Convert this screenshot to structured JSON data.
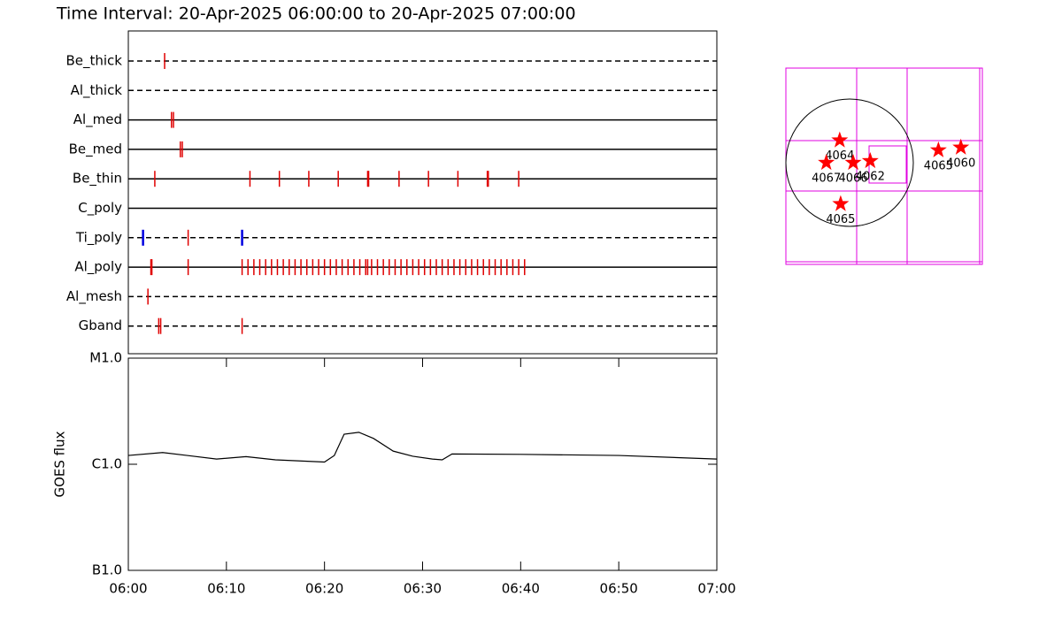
{
  "chart_data": [
    {
      "type": "timeline",
      "title": "Time Interval: 20-Apr-2025 06:00:00 to 20-Apr-2025 07:00:00",
      "xlim": [
        0,
        60
      ],
      "series": [
        {
          "name": "Be_thick",
          "line_style": "dashed",
          "color": "#e00000",
          "values": [
            3.7
          ]
        },
        {
          "name": "Al_thick",
          "line_style": "dashed",
          "color": "#e00000",
          "values": []
        },
        {
          "name": "Al_med",
          "line_style": "solid",
          "color": "#e00000",
          "values": [
            4.4,
            4.6
          ]
        },
        {
          "name": "Be_med",
          "line_style": "solid",
          "color": "#e00000",
          "values": [
            5.3,
            5.5
          ]
        },
        {
          "name": "Be_thin",
          "line_style": "solid",
          "color": "#e00000",
          "values": [
            2.7,
            12.4,
            15.4,
            18.4,
            21.4,
            24.4,
            24.5,
            27.6,
            30.6,
            33.6,
            36.6,
            36.7,
            39.8
          ]
        },
        {
          "name": "C_poly",
          "line_style": "solid",
          "color": "#e00000",
          "values": []
        },
        {
          "name": "Ti_poly",
          "line_style": "dashed",
          "color": "#e00000",
          "values": [
            1.5,
            6.1,
            11.6
          ],
          "colors": [
            "#0000e0",
            "#e00000",
            "#0000e0"
          ]
        },
        {
          "name": "Al_poly",
          "line_style": "solid",
          "color": "#e00000",
          "values": [
            2.3,
            2.4,
            6.1,
            11.6,
            12.2,
            12.8,
            13.4,
            14.0,
            14.6,
            15.2,
            15.8,
            16.4,
            17.0,
            17.6,
            18.2,
            18.8,
            19.4,
            20.0,
            20.6,
            21.2,
            21.8,
            22.4,
            23.0,
            23.6,
            24.2,
            24.4,
            24.8,
            25.4,
            26.0,
            26.6,
            27.2,
            27.8,
            28.4,
            29.0,
            29.6,
            30.2,
            30.8,
            31.4,
            32.0,
            32.6,
            33.2,
            33.8,
            34.4,
            35.0,
            35.6,
            36.2,
            36.8,
            37.4,
            38.0,
            38.6,
            39.2,
            39.8,
            40.4
          ]
        },
        {
          "name": "Al_mesh",
          "line_style": "dashed",
          "color": "#e00000",
          "values": [
            2.0
          ]
        },
        {
          "name": "Gband",
          "line_style": "dashed",
          "color": "#e00000",
          "values": [
            3.1,
            3.3,
            11.6
          ]
        }
      ]
    },
    {
      "type": "line",
      "y_label": "GOES flux",
      "log_y": true,
      "color": "#000000",
      "xlim": [
        0,
        60
      ],
      "xticks": [
        {
          "value": 0,
          "label": "06:00"
        },
        {
          "value": 10,
          "label": "06:10"
        },
        {
          "value": 20,
          "label": "06:20"
        },
        {
          "value": 30,
          "label": "06:30"
        },
        {
          "value": 40,
          "label": "06:40"
        },
        {
          "value": 50,
          "label": "06:50"
        },
        {
          "value": 60,
          "label": "07:00"
        }
      ],
      "ylim": [
        1e-07,
        1e-05
      ],
      "yticks": [
        {
          "value": 1e-07,
          "label": "B1.0"
        },
        {
          "value": 1e-06,
          "label": "C1.0"
        },
        {
          "value": 1e-05,
          "label": "M1.0"
        }
      ],
      "x": [
        0,
        3.5,
        6,
        9,
        12,
        15,
        20,
        21,
        22,
        23.5,
        25,
        27,
        29,
        31,
        32,
        33,
        40,
        50,
        60
      ],
      "values": [
        1.21e-06,
        1.29e-06,
        1.21e-06,
        1.12e-06,
        1.18e-06,
        1.1e-06,
        1.05e-06,
        1.21e-06,
        1.92e-06,
        2e-06,
        1.75e-06,
        1.33e-06,
        1.19e-06,
        1.12e-06,
        1.1e-06,
        1.25e-06,
        1.24e-06,
        1.21e-06,
        1.12e-06
      ]
    },
    {
      "type": "scatter",
      "color": "#ff0000",
      "labels": [
        "4064",
        "4067",
        "4066",
        "4062",
        "4065",
        "4065",
        "4060"
      ],
      "x": [
        -149,
        -351,
        54,
        311,
        -135,
        1338,
        1676
      ],
      "y": [
        338,
        0,
        0,
        27,
        -622,
        189,
        230
      ]
    }
  ]
}
